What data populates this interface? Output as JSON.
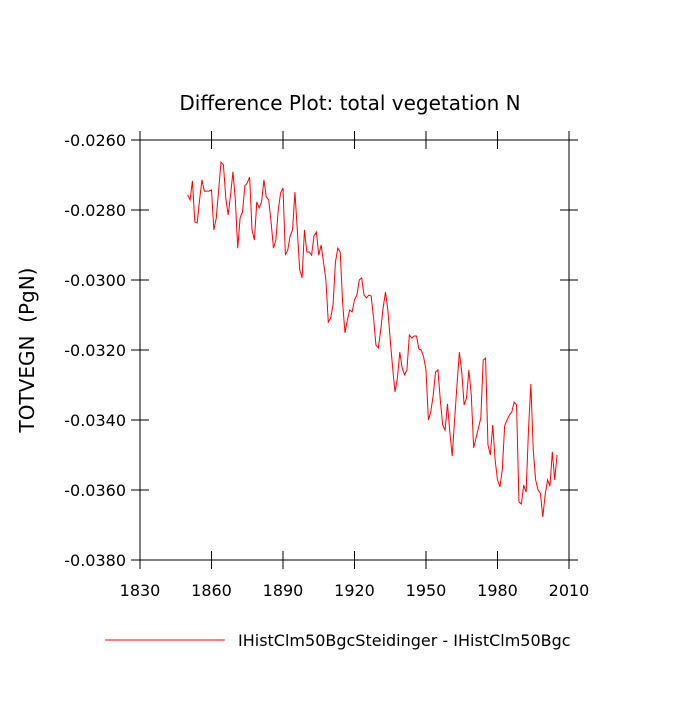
{
  "chart_data": {
    "type": "line",
    "title": "Difference Plot: total vegetation N",
    "y_label": "TOTVEGN  (PgN)",
    "x": [
      1850,
      1851,
      1852,
      1853,
      1854,
      1855,
      1856,
      1857,
      1858,
      1859,
      1860,
      1861,
      1862,
      1863,
      1864,
      1865,
      1866,
      1867,
      1868,
      1869,
      1870,
      1871,
      1872,
      1873,
      1874,
      1875,
      1876,
      1877,
      1878,
      1879,
      1880,
      1881,
      1882,
      1883,
      1884,
      1885,
      1886,
      1887,
      1888,
      1889,
      1890,
      1891,
      1892,
      1893,
      1894,
      1895,
      1896,
      1897,
      1898,
      1899,
      1900,
      1901,
      1902,
      1903,
      1904,
      1905,
      1906,
      1907,
      1908,
      1909,
      1910,
      1911,
      1912,
      1913,
      1914,
      1915,
      1916,
      1917,
      1918,
      1919,
      1920,
      1921,
      1922,
      1923,
      1924,
      1925,
      1926,
      1927,
      1928,
      1929,
      1930,
      1931,
      1932,
      1933,
      1934,
      1935,
      1936,
      1937,
      1938,
      1939,
      1940,
      1941,
      1942,
      1943,
      1944,
      1945,
      1946,
      1947,
      1948,
      1949,
      1950,
      1951,
      1952,
      1953,
      1954,
      1955,
      1956,
      1957,
      1958,
      1959,
      1960,
      1961,
      1962,
      1963,
      1964,
      1965,
      1966,
      1967,
      1968,
      1969,
      1970,
      1971,
      1972,
      1973,
      1974,
      1975,
      1976,
      1977,
      1978,
      1979,
      1980,
      1981,
      1982,
      1983,
      1984,
      1985,
      1986,
      1987,
      1988,
      1989,
      1990,
      1991,
      1992,
      1993,
      1994,
      1995,
      1996,
      1997,
      1998,
      1999,
      2000,
      2001,
      2002,
      2003,
      2004,
      2005
    ],
    "series": [
      {
        "name": "IHistClm50BgcSteidinger - IHistClm50Bgc",
        "color": "#ff0000",
        "values": [
          -0.02757,
          -0.02771,
          -0.02717,
          -0.02834,
          -0.02837,
          -0.02771,
          -0.02714,
          -0.02746,
          -0.02746,
          -0.02746,
          -0.02743,
          -0.02857,
          -0.02823,
          -0.02743,
          -0.02663,
          -0.02671,
          -0.02766,
          -0.02814,
          -0.02757,
          -0.02691,
          -0.02771,
          -0.02909,
          -0.02823,
          -0.02806,
          -0.02731,
          -0.02723,
          -0.02706,
          -0.02857,
          -0.02886,
          -0.02777,
          -0.02794,
          -0.02777,
          -0.02714,
          -0.02763,
          -0.02771,
          -0.02834,
          -0.02909,
          -0.02886,
          -0.028,
          -0.02751,
          -0.02737,
          -0.02929,
          -0.02914,
          -0.02874,
          -0.02857,
          -0.02749,
          -0.02857,
          -0.02971,
          -0.02994,
          -0.02857,
          -0.0292,
          -0.0292,
          -0.02929,
          -0.02874,
          -0.02863,
          -0.02929,
          -0.029,
          -0.02949,
          -0.03,
          -0.0312,
          -0.03109,
          -0.03071,
          -0.02949,
          -0.02909,
          -0.0292,
          -0.03063,
          -0.03151,
          -0.03114,
          -0.03086,
          -0.03091,
          -0.03057,
          -0.03043,
          -0.03,
          -0.02994,
          -0.03043,
          -0.03051,
          -0.03043,
          -0.03046,
          -0.03109,
          -0.03186,
          -0.03194,
          -0.03143,
          -0.0308,
          -0.03034,
          -0.03086,
          -0.03171,
          -0.03251,
          -0.0332,
          -0.0328,
          -0.03206,
          -0.03251,
          -0.03271,
          -0.03257,
          -0.03157,
          -0.03166,
          -0.0316,
          -0.0316,
          -0.03197,
          -0.032,
          -0.0322,
          -0.03257,
          -0.034,
          -0.03377,
          -0.03331,
          -0.03263,
          -0.03257,
          -0.03343,
          -0.03414,
          -0.03429,
          -0.03354,
          -0.03434,
          -0.03503,
          -0.034,
          -0.033,
          -0.03206,
          -0.03263,
          -0.03357,
          -0.03337,
          -0.03257,
          -0.03329,
          -0.0348,
          -0.03451,
          -0.03423,
          -0.03394,
          -0.03229,
          -0.03223,
          -0.03471,
          -0.035,
          -0.03414,
          -0.03514,
          -0.03571,
          -0.03591,
          -0.03543,
          -0.03417,
          -0.034,
          -0.03386,
          -0.03377,
          -0.03349,
          -0.03357,
          -0.03634,
          -0.0364,
          -0.03586,
          -0.03606,
          -0.03429,
          -0.03297,
          -0.03486,
          -0.03571,
          -0.036,
          -0.03609,
          -0.03677,
          -0.03614,
          -0.03571,
          -0.03589,
          -0.03491,
          -0.03571,
          -0.035
        ]
      }
    ],
    "xlim": [
      1830,
      2010
    ],
    "xticks": [
      1830,
      1860,
      1890,
      1920,
      1950,
      1980,
      2010
    ],
    "ylim": [
      -0.038,
      -0.026
    ],
    "yticks": [
      {
        "value": -0.038,
        "label": "-0.0380"
      },
      {
        "value": -0.036,
        "label": "-0.0360"
      },
      {
        "value": -0.034,
        "label": "-0.0340"
      },
      {
        "value": -0.032,
        "label": "-0.0320"
      },
      {
        "value": -0.03,
        "label": "-0.0300"
      },
      {
        "value": -0.028,
        "label": "-0.0280"
      },
      {
        "value": -0.026,
        "label": "-0.0260"
      }
    ],
    "grid": false,
    "legend_position": "bottom"
  }
}
